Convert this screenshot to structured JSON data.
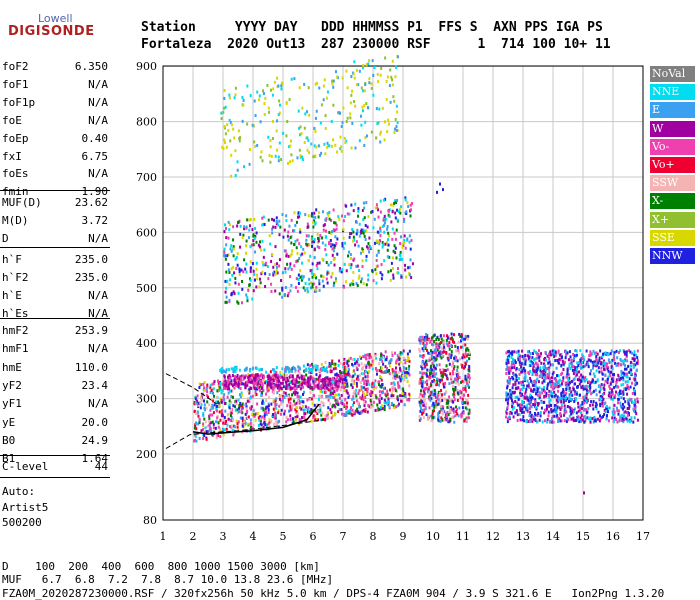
{
  "logo": {
    "top": "Lowell",
    "bottom": "DIGISONDE"
  },
  "header": {
    "row1": "Station     YYYY DAY   DDD HHMMSS P1  FFS S  AXN PPS IGA PS",
    "row2": "Fortaleza  2020 Out13  287 230000 RSF      1  714 100 10+ 11"
  },
  "params": [
    {
      "name": "foF2",
      "value": "6.350"
    },
    {
      "name": "foF1",
      "value": "N/A"
    },
    {
      "name": "foF1p",
      "value": "N/A"
    },
    {
      "name": "foE",
      "value": "N/A"
    },
    {
      "name": "foEp",
      "value": "0.40"
    },
    {
      "name": "fxI",
      "value": "6.75"
    },
    {
      "name": "foEs",
      "value": "N/A"
    },
    {
      "name": "fmin",
      "value": "1.90"
    },
    {
      "name": "MUF(D)",
      "value": "23.62"
    },
    {
      "name": "M(D)",
      "value": "3.72"
    },
    {
      "name": "D",
      "value": "N/A"
    },
    {
      "name": "h`F",
      "value": "235.0"
    },
    {
      "name": "h`F2",
      "value": "235.0"
    },
    {
      "name": "h`E",
      "value": "N/A"
    },
    {
      "name": "h`Es",
      "value": "N/A"
    },
    {
      "name": "hmF2",
      "value": "253.9"
    },
    {
      "name": "hmF1",
      "value": "N/A"
    },
    {
      "name": "hmE",
      "value": "110.0"
    },
    {
      "name": "yF2",
      "value": "23.4"
    },
    {
      "name": "yF1",
      "value": "N/A"
    },
    {
      "name": "yE",
      "value": "20.0"
    },
    {
      "name": "B0",
      "value": "24.9"
    },
    {
      "name": "B1",
      "value": "1.64"
    },
    {
      "name": "C-level",
      "value": "44"
    }
  ],
  "auto": {
    "line1": "Auto:",
    "line2": "Artist5",
    "line3": "500200"
  },
  "legend": [
    {
      "label": "NoVal",
      "color": "#808080"
    },
    {
      "label": "NNE",
      "color": "#00dcf0"
    },
    {
      "label": "E",
      "color": "#3aa0f0"
    },
    {
      "label": "W",
      "color": "#a000a0"
    },
    {
      "label": "Vo-",
      "color": "#f040b0"
    },
    {
      "label": "Vo+",
      "color": "#f00030"
    },
    {
      "label": "SSW",
      "color": "#f4b4b4"
    },
    {
      "label": "X-",
      "color": "#008000"
    },
    {
      "label": "X+",
      "color": "#90c030"
    },
    {
      "label": "SSE",
      "color": "#d8d800"
    },
    {
      "label": "NNW",
      "color": "#2020e0"
    }
  ],
  "footer": {
    "d_row": "D    100  200  400  600  800 1000 1500 3000 [km]",
    "muf_row": "MUF   6.7  6.8  7.2  7.8  8.7 10.0 13.8 23.6 [MHz]",
    "file_row": "FZA0M_2020287230000.RSF / 320fx256h 50 kHz 5.0 km / DPS-4 FZA0M 904 / 3.9 S 321.6 E   Ion2Png 1.3.20"
  },
  "chart_data": {
    "type": "scatter",
    "title": "",
    "xlabel": "",
    "ylabel": "",
    "x_ticks": [
      1,
      2,
      3,
      4,
      5,
      6,
      7,
      8,
      9,
      10,
      11,
      12,
      13,
      14,
      15,
      16,
      17
    ],
    "y_ticks": [
      80,
      200,
      300,
      400,
      500,
      600,
      700,
      800,
      900
    ],
    "xlim": [
      1,
      17
    ],
    "ylim": [
      80,
      900
    ],
    "grid": true,
    "legend_placement": "right",
    "series": [
      {
        "name": "W",
        "color": "#a000a0",
        "points": [
          [
            3,
            330
          ],
          [
            4,
            330
          ],
          [
            5,
            335
          ],
          [
            6,
            330
          ],
          [
            7,
            335
          ],
          [
            8,
            320
          ]
        ]
      },
      {
        "name": "NNE",
        "color": "#00dcf0",
        "points": [
          [
            3,
            280
          ],
          [
            4,
            300
          ],
          [
            5,
            310
          ],
          [
            8,
            330
          ],
          [
            13,
            300
          ],
          [
            15,
            300
          ]
        ]
      },
      {
        "name": "Vo-",
        "color": "#f040b0",
        "points": [
          [
            2.5,
            250
          ],
          [
            3.5,
            260
          ],
          [
            4.5,
            270
          ],
          [
            5.5,
            275
          ],
          [
            6.5,
            285
          ],
          [
            7.5,
            300
          ],
          [
            8.5,
            320
          ],
          [
            9,
            330
          ]
        ]
      },
      {
        "name": "NNW",
        "color": "#2020e0",
        "points": [
          [
            10,
            370
          ],
          [
            10.5,
            330
          ],
          [
            13,
            330
          ],
          [
            14,
            330
          ],
          [
            14.5,
            320
          ],
          [
            15,
            320
          ]
        ]
      },
      {
        "name": "SSE",
        "color": "#d8d800",
        "points": [
          [
            3,
            730
          ],
          [
            4,
            760
          ],
          [
            6,
            790
          ],
          [
            8,
            835
          ],
          [
            3.5,
            500
          ],
          [
            5,
            530
          ]
        ]
      },
      {
        "name": "E",
        "color": "#3aa0f0",
        "points": [
          [
            4,
            540
          ],
          [
            6,
            560
          ],
          [
            8,
            590
          ],
          [
            9,
            610
          ]
        ]
      },
      {
        "name": "SSW",
        "color": "#f4b4b4",
        "points": [
          [
            9,
            600
          ],
          [
            9.5,
            290
          ],
          [
            11,
            310
          ]
        ]
      }
    ],
    "profile_curve": [
      [
        1.9,
        235
      ],
      [
        2.5,
        238
      ],
      [
        3.5,
        242
      ],
      [
        4.5,
        248
      ],
      [
        5.5,
        255
      ],
      [
        6.35,
        262
      ]
    ],
    "o_trace": [
      [
        2,
        240
      ],
      [
        2.5,
        236
      ],
      [
        3,
        238
      ],
      [
        4,
        242
      ],
      [
        5,
        248
      ],
      [
        5.8,
        262
      ],
      [
        6.2,
        290
      ]
    ],
    "fit_upper": [
      [
        1.1,
        345
      ],
      [
        2,
        320
      ],
      [
        2.8,
        290
      ]
    ]
  }
}
